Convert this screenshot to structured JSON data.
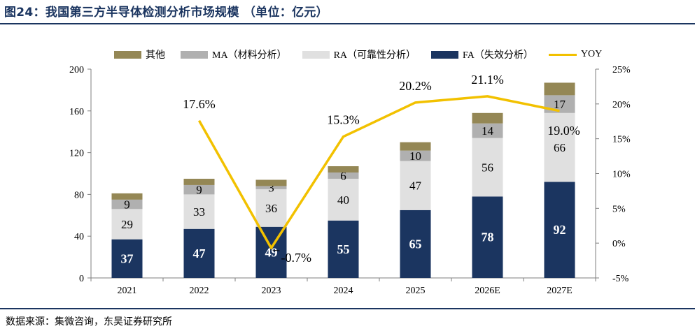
{
  "header": {
    "title": "图24：我国第三方半导体检测分析市场规模 （单位：亿元）"
  },
  "footer": {
    "source": "数据来源：集微咨询，东吴证券研究所"
  },
  "colors": {
    "fa": "#1b3560",
    "ra": "#e0e0e0",
    "ma": "#b0b0b0",
    "other": "#948755",
    "yoy": "#f2c100",
    "rule": "#1b3560"
  },
  "chart_data": {
    "type": "bar",
    "stacked": true,
    "categories": [
      "2021",
      "2022",
      "2023",
      "2024",
      "2025",
      "2026E",
      "2027E"
    ],
    "series": [
      {
        "name": "FA（失效分析）",
        "key": "fa",
        "values": [
          37,
          47,
          49,
          55,
          65,
          78,
          92
        ],
        "labels": [
          "37",
          "47",
          "49",
          "55",
          "65",
          "78",
          "92"
        ]
      },
      {
        "name": "RA（可靠性分析）",
        "key": "ra",
        "values": [
          29,
          33,
          36,
          40,
          47,
          56,
          66
        ],
        "labels": [
          "29",
          "33",
          "36",
          "40",
          "47",
          "56",
          "66"
        ]
      },
      {
        "name": "MA（材料分析）",
        "key": "ma",
        "values": [
          9,
          9,
          3,
          6,
          10,
          14,
          17
        ],
        "labels": [
          "9",
          "9",
          "3",
          "6",
          "10",
          "14",
          "17"
        ]
      },
      {
        "name": "其他",
        "key": "other",
        "values": [
          6,
          6,
          6,
          6,
          8,
          10,
          12
        ]
      }
    ],
    "yoy": {
      "name": "YOY",
      "values": [
        null,
        17.6,
        -0.7,
        15.3,
        20.2,
        21.1,
        19.0
      ],
      "labels": [
        "",
        "17.6%",
        "-0.7%",
        "15.3%",
        "20.2%",
        "21.1%",
        "19.0%"
      ]
    },
    "legend_order": [
      "其他",
      "MA（材料分析）",
      "RA（可靠性分析）",
      "FA（失效分析）",
      "YOY"
    ],
    "legend_position": "top",
    "y_left": {
      "range": [
        0,
        200
      ],
      "ticks": [
        "0",
        "40",
        "80",
        "120",
        "160",
        "200"
      ]
    },
    "y_right": {
      "range": [
        -5,
        25
      ],
      "ticks": [
        "-5%",
        "0%",
        "5%",
        "10%",
        "15%",
        "20%",
        "25%"
      ]
    },
    "grid": false
  }
}
